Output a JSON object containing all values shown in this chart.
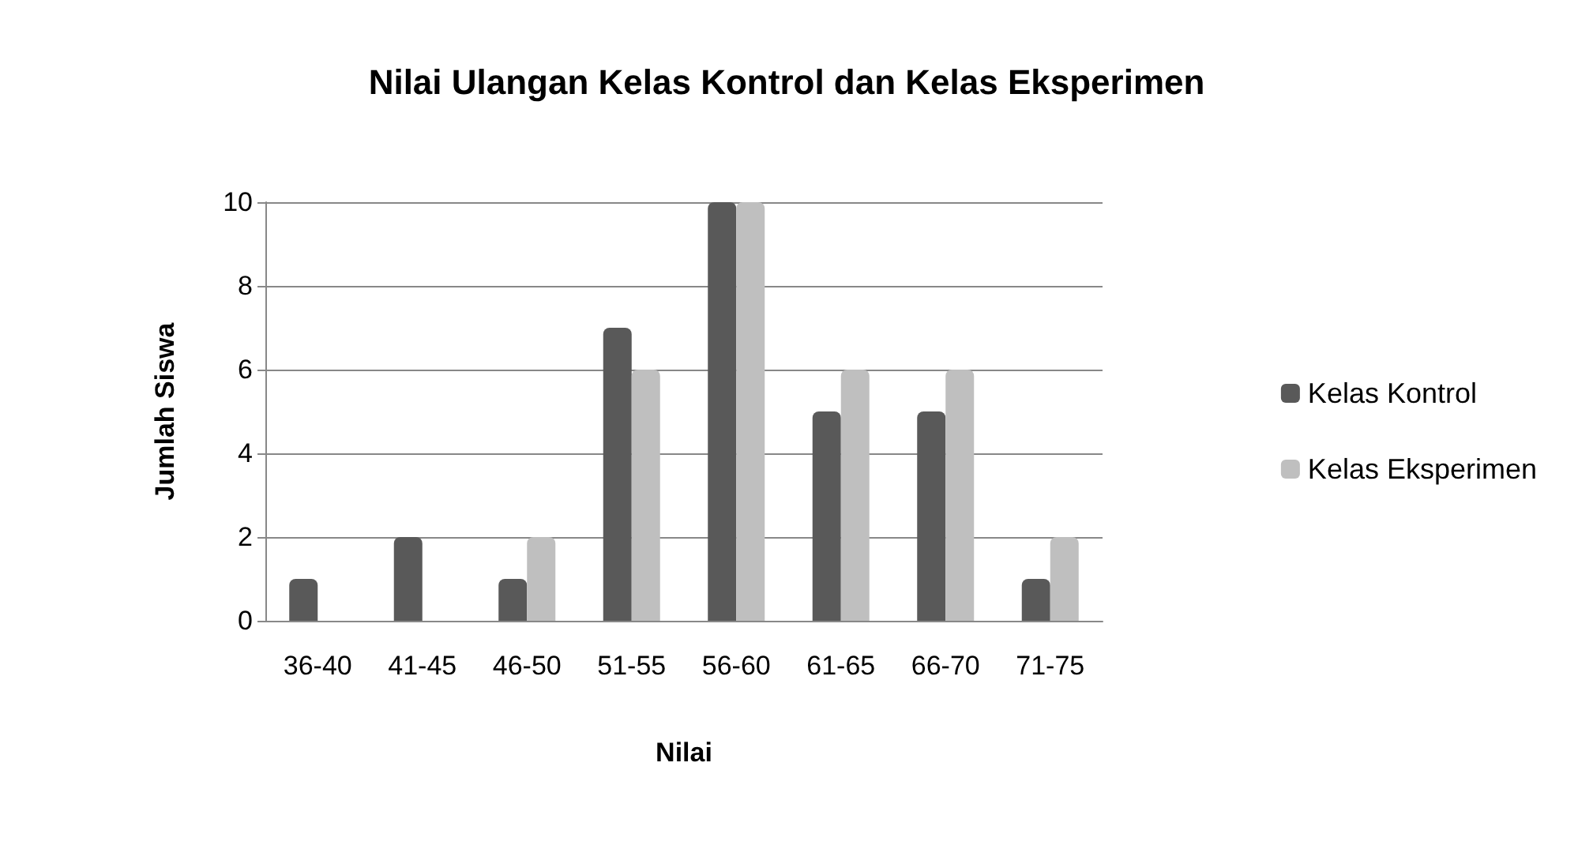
{
  "chart_data": {
    "type": "bar",
    "title": "Nilai Ulangan Kelas Kontrol dan Kelas Eksperimen",
    "xlabel": "Nilai",
    "ylabel": "Jumlah Siswa",
    "categories": [
      "36-40",
      "41-45",
      "46-50",
      "51-55",
      "56-60",
      "61-65",
      "66-70",
      "71-75"
    ],
    "series": [
      {
        "name": "Kelas Kontrol",
        "color": "#595959",
        "values": [
          1,
          2,
          1,
          7,
          10,
          5,
          5,
          1
        ]
      },
      {
        "name": "Kelas Eksperimen",
        "color": "#bfbfbf",
        "values": [
          0,
          0,
          2,
          6,
          10,
          6,
          6,
          2
        ]
      }
    ],
    "ylim": [
      0,
      10
    ],
    "yticks": [
      0,
      2,
      4,
      6,
      8,
      10
    ],
    "grid": "y",
    "legend": "right"
  }
}
